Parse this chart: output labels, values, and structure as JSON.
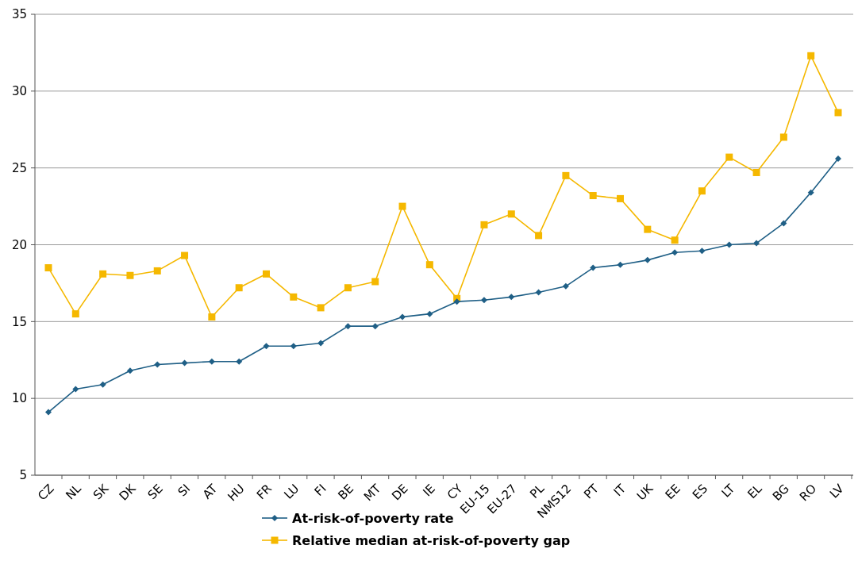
{
  "chart_data": {
    "type": "line",
    "categories": [
      "CZ",
      "NL",
      "SK",
      "DK",
      "SE",
      "SI",
      "AT",
      "HU",
      "FR",
      "LU",
      "FI",
      "BE",
      "MT",
      "DE",
      "IE",
      "CY",
      "EU-15",
      "EU-27",
      "PL",
      "NMS12",
      "PT",
      "IT",
      "UK",
      "EE",
      "ES",
      "LT",
      "EL",
      "BG",
      "RO",
      "LV"
    ],
    "series": [
      {
        "name": "At-risk-of-poverty rate",
        "color": "#1f5f86",
        "marker": "diamond",
        "values": [
          9.1,
          10.6,
          10.9,
          11.8,
          12.2,
          12.3,
          12.4,
          12.4,
          13.4,
          13.4,
          13.6,
          14.7,
          14.7,
          15.3,
          15.5,
          16.3,
          16.4,
          16.6,
          16.9,
          17.3,
          18.5,
          18.7,
          19.0,
          19.5,
          19.6,
          20.0,
          20.1,
          21.4,
          23.4,
          25.6
        ]
      },
      {
        "name": "Relative median at-risk-of-poverty gap",
        "color": "#f5b800",
        "marker": "square",
        "values": [
          18.5,
          15.5,
          18.1,
          18.0,
          18.3,
          19.3,
          15.3,
          17.2,
          18.1,
          16.6,
          15.9,
          17.2,
          17.6,
          22.5,
          18.7,
          16.5,
          21.3,
          22.0,
          20.6,
          24.5,
          23.2,
          23.0,
          21.0,
          20.3,
          23.5,
          25.7,
          24.7,
          27.0,
          32.3,
          28.6
        ]
      }
    ],
    "ylim": [
      5,
      35
    ],
    "yticks": [
      5,
      10,
      15,
      20,
      25,
      30,
      35
    ],
    "grid": "y",
    "legend": "bottom"
  }
}
